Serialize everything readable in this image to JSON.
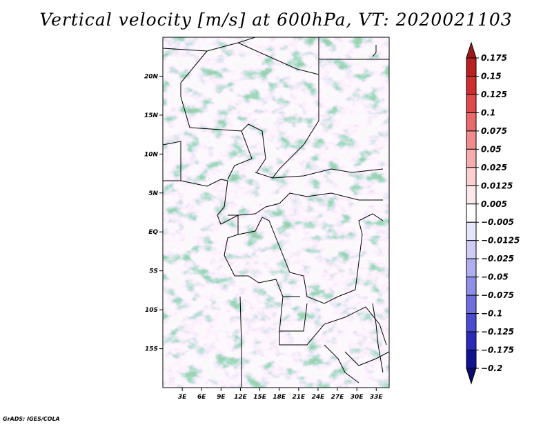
{
  "title": "Vertical velocity [m/s] at 600hPa, VT: 2020021103",
  "footer": "GrADS: IGES/COLA",
  "map": {
    "lon_range": [
      0,
      35
    ],
    "lat_range": [
      -20,
      25
    ],
    "lon_labels": [
      "3E",
      "6E",
      "9E",
      "12E",
      "15E",
      "18E",
      "21E",
      "24E",
      "27E",
      "30E",
      "33E"
    ],
    "lon_values": [
      3,
      6,
      9,
      12,
      15,
      18,
      21,
      24,
      27,
      30,
      33
    ],
    "lat_labels": [
      "20N",
      "15N",
      "10N",
      "5N",
      "EQ",
      "5S",
      "10S",
      "15S"
    ],
    "lat_values": [
      20,
      15,
      10,
      5,
      0,
      -5,
      -10,
      -15
    ],
    "field": "Vertical velocity at 600hPa",
    "units": "m/s"
  },
  "colorbar": {
    "labels": [
      "0.175",
      "0.15",
      "0.125",
      "0.1",
      "0.075",
      "0.05",
      "0.025",
      "0.0125",
      "0.005",
      "−0.005",
      "−0.0125",
      "−0.025",
      "−0.05",
      "−0.075",
      "−0.1",
      "−0.125",
      "−0.175",
      "−0.2"
    ],
    "colors": [
      "#a01818",
      "#b82020",
      "#cf2e2e",
      "#e04a4a",
      "#e86a6a",
      "#f08c8c",
      "#f6adad",
      "#fbcfcf",
      "#fde9e9",
      "#ffffff",
      "#e6e6fb",
      "#cdcdf6",
      "#aeaef0",
      "#8f8fe8",
      "#6e6edf",
      "#4b4bd0",
      "#2a2ab6",
      "#12128f",
      "#0b0b70"
    ]
  }
}
